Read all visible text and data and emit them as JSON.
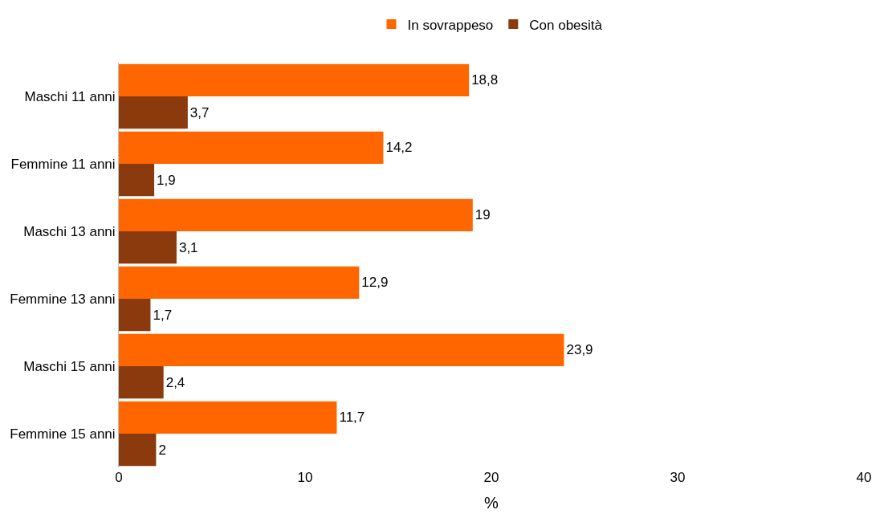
{
  "chart_data": {
    "type": "bar",
    "orientation": "horizontal",
    "xlabel": "%",
    "categories": [
      "Maschi 11 anni",
      "Femmine 11 anni",
      "Maschi 13 anni",
      "Femmine 13 anni",
      "Maschi 15 anni",
      "Femmine 15 anni"
    ],
    "series": [
      {
        "name": "In sovrappeso",
        "color": "#ff6600",
        "values": [
          18.8,
          14.2,
          19,
          12.9,
          23.9,
          11.7
        ],
        "value_labels": [
          "18,8",
          "14,2",
          "19",
          "12,9",
          "23,9",
          "11,7"
        ]
      },
      {
        "name": "Con obesità",
        "color": "#8b3a0e",
        "values": [
          3.7,
          1.9,
          3.1,
          1.7,
          2.4,
          2
        ],
        "value_labels": [
          "3,7",
          "1,9",
          "3,1",
          "1,7",
          "2,4",
          "2"
        ]
      }
    ],
    "xlim": [
      0,
      40
    ],
    "xticks": [
      0,
      10,
      20,
      30,
      40
    ],
    "grid": false,
    "legend": "top"
  }
}
